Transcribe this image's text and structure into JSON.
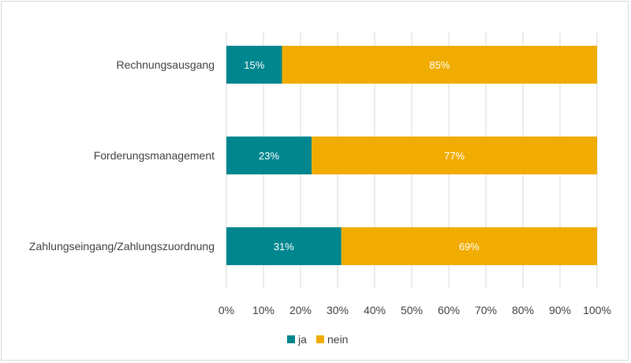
{
  "chart_data": {
    "type": "bar",
    "orientation": "horizontal",
    "stacked": "percent",
    "categories": [
      "Rechnungsausgang",
      "Forderungsmanagement",
      "Zahlungseingang/Zahlungszuordnung"
    ],
    "series": [
      {
        "name": "ja",
        "values": [
          15,
          23,
          31
        ],
        "labels": [
          "15%",
          "23%",
          "31%"
        ],
        "color": "#00868F"
      },
      {
        "name": "nein",
        "values": [
          85,
          77,
          69
        ],
        "labels": [
          "85%",
          "77%",
          "69%"
        ],
        "color": "#F0AC00"
      }
    ],
    "xticks": [
      "0%",
      "10%",
      "20%",
      "30%",
      "40%",
      "50%",
      "60%",
      "70%",
      "80%",
      "90%",
      "100%"
    ],
    "xlim": [
      0,
      100
    ],
    "grid": true,
    "legend": "bottom",
    "title": "",
    "xlabel": "",
    "ylabel": ""
  }
}
